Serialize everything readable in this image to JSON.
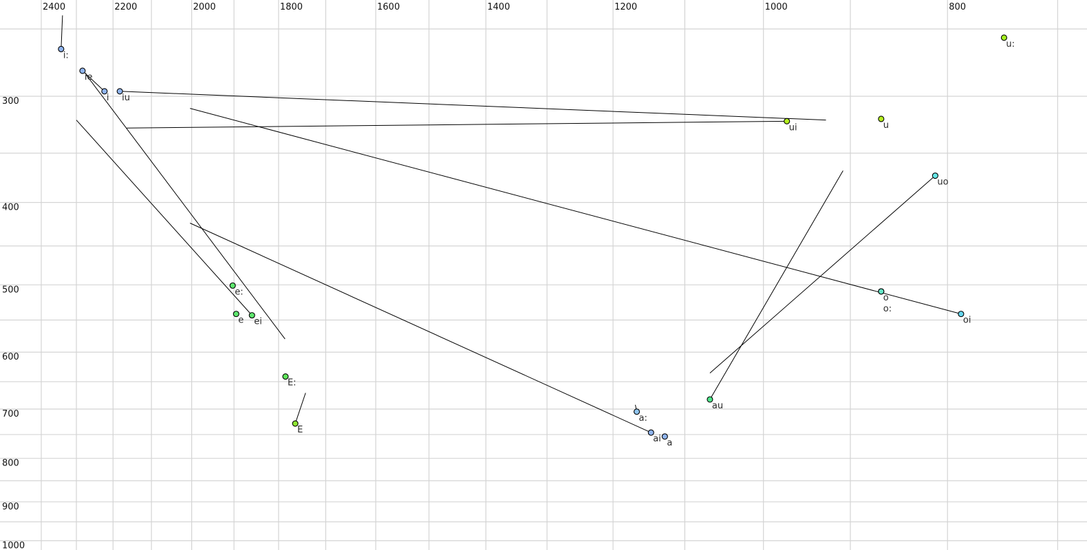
{
  "chart_data": {
    "type": "scatter",
    "title": "",
    "xlabel": "",
    "ylabel": "",
    "x_axis": {
      "reversed": true,
      "scale": "log",
      "range": [
        2400,
        700
      ],
      "position": "top",
      "tick_labels": [
        2400,
        2200,
        2000,
        1800,
        1600,
        1400,
        1200,
        1000,
        800
      ],
      "gridlines": [
        2400,
        2300,
        2200,
        2100,
        2000,
        1900,
        1800,
        1700,
        1600,
        1500,
        1400,
        1300,
        1200,
        1100,
        1000,
        900,
        800,
        700
      ]
    },
    "y_axis": {
      "reversed": true,
      "scale": "log",
      "range": [
        230,
        1010
      ],
      "position": "left",
      "tick_labels": [
        300,
        400,
        500,
        600,
        700,
        800,
        900,
        1000
      ],
      "gridlines": [
        250,
        300,
        350,
        400,
        450,
        500,
        550,
        600,
        650,
        700,
        750,
        800,
        850,
        900,
        950,
        1000
      ]
    },
    "grid": true,
    "points": [
      {
        "label": "i:",
        "f2": 2343,
        "f1": 264,
        "color": "#8fb4ee"
      },
      {
        "label": "ie",
        "f2": 2283,
        "f1": 280,
        "color": "#8fb4ee"
      },
      {
        "label": "i",
        "f2": 2223,
        "f1": 296,
        "color": "#8fb4ee"
      },
      {
        "label": "iu",
        "f2": 2182,
        "f1": 296,
        "color": "#8fb4ee"
      },
      {
        "label": "ui",
        "f2": 972,
        "f1": 321,
        "color": "#b4ee1e"
      },
      {
        "label": "u",
        "f2": 867,
        "f1": 319,
        "color": "#b4ee1e"
      },
      {
        "label": "u:",
        "f2": 747,
        "f1": 256,
        "color": "#a4f01e"
      },
      {
        "label": "uo",
        "f2": 812,
        "f1": 372,
        "color": "#66e6e6"
      },
      {
        "label": "o",
        "f2": 867,
        "f1": 509,
        "color": "#66e6c8"
      },
      {
        "label": "o:",
        "f2": 867,
        "f1": 509,
        "color": "#66e6c8"
      },
      {
        "label": "oi",
        "f2": 787,
        "f1": 541,
        "color": "#66d6ee"
      },
      {
        "label": "e:",
        "f2": 1903,
        "f1": 501,
        "color": "#5ee66e"
      },
      {
        "label": "e",
        "f2": 1895,
        "f1": 541,
        "color": "#5ee66e"
      },
      {
        "label": "ei",
        "f2": 1859,
        "f1": 543,
        "color": "#5ee66e"
      },
      {
        "label": "E:",
        "f2": 1785,
        "f1": 641,
        "color": "#5ee65a"
      },
      {
        "label": "E",
        "f2": 1764,
        "f1": 728,
        "color": "#8ee632"
      },
      {
        "label": "a:",
        "f2": 1166,
        "f1": 705,
        "color": "#8fc4ee"
      },
      {
        "label": "ai",
        "f2": 1146,
        "f1": 746,
        "color": "#8fb4ee"
      },
      {
        "label": "a",
        "f2": 1127,
        "f1": 754,
        "color": "#8fb4ee"
      },
      {
        "label": "au",
        "f2": 1067,
        "f1": 682,
        "color": "#4ee68a"
      }
    ],
    "trajectories": [
      {
        "from": [
          2339,
          241
        ],
        "to": [
          2343,
          264
        ]
      },
      {
        "from": [
          2283,
          280
        ],
        "to": [
          2223,
          296
        ]
      },
      {
        "from": [
          2273,
          283
        ],
        "to": [
          1786,
          579
        ]
      },
      {
        "from": [
          2182,
          296
        ],
        "to": [
          927,
          320
        ]
      },
      {
        "from": [
          2164,
          327
        ],
        "to": [
          972,
          321
        ]
      },
      {
        "from": [
          2300,
          320
        ],
        "to": [
          1859,
          543
        ]
      },
      {
        "from": [
          2004,
          310
        ],
        "to": [
          787,
          541
        ]
      },
      {
        "from": [
          2004,
          423
        ],
        "to": [
          1146,
          746
        ]
      },
      {
        "from": [
          1742,
          670
        ],
        "to": [
          1764,
          728
        ]
      },
      {
        "from": [
          908,
          367
        ],
        "to": [
          1067,
          682
        ]
      },
      {
        "from": [
          812,
          372
        ],
        "to": [
          1067,
          635
        ]
      },
      {
        "from": [
          1168,
          692
        ],
        "to": [
          1166,
          705
        ]
      }
    ]
  }
}
